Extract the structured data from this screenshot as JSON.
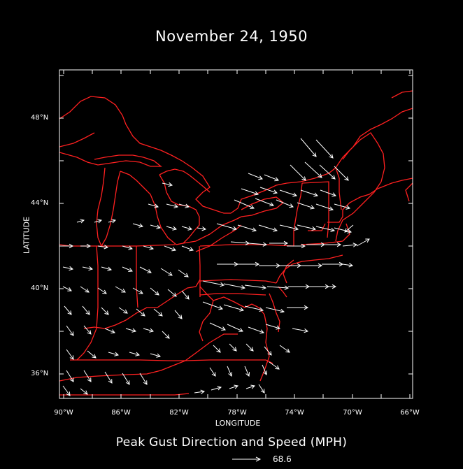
{
  "title": "November 24, 1950",
  "subtitle": "Peak Gust Direction and Speed (MPH)",
  "axes": {
    "xlabel": "LONGITUDE",
    "ylabel": "LATITUDE",
    "x_ticks": [
      "90°W",
      "86°W",
      "82°W",
      "78°W",
      "74°W",
      "70°W",
      "66°W"
    ],
    "y_ticks": [
      "36°N",
      "40°N",
      "44°N",
      "48°N"
    ]
  },
  "reference_vector": {
    "value": "68.6"
  },
  "colors": {
    "background": "#000000",
    "borders": "#ff2020",
    "vectors": "#ffffff",
    "frame": "#ffffff"
  }
}
